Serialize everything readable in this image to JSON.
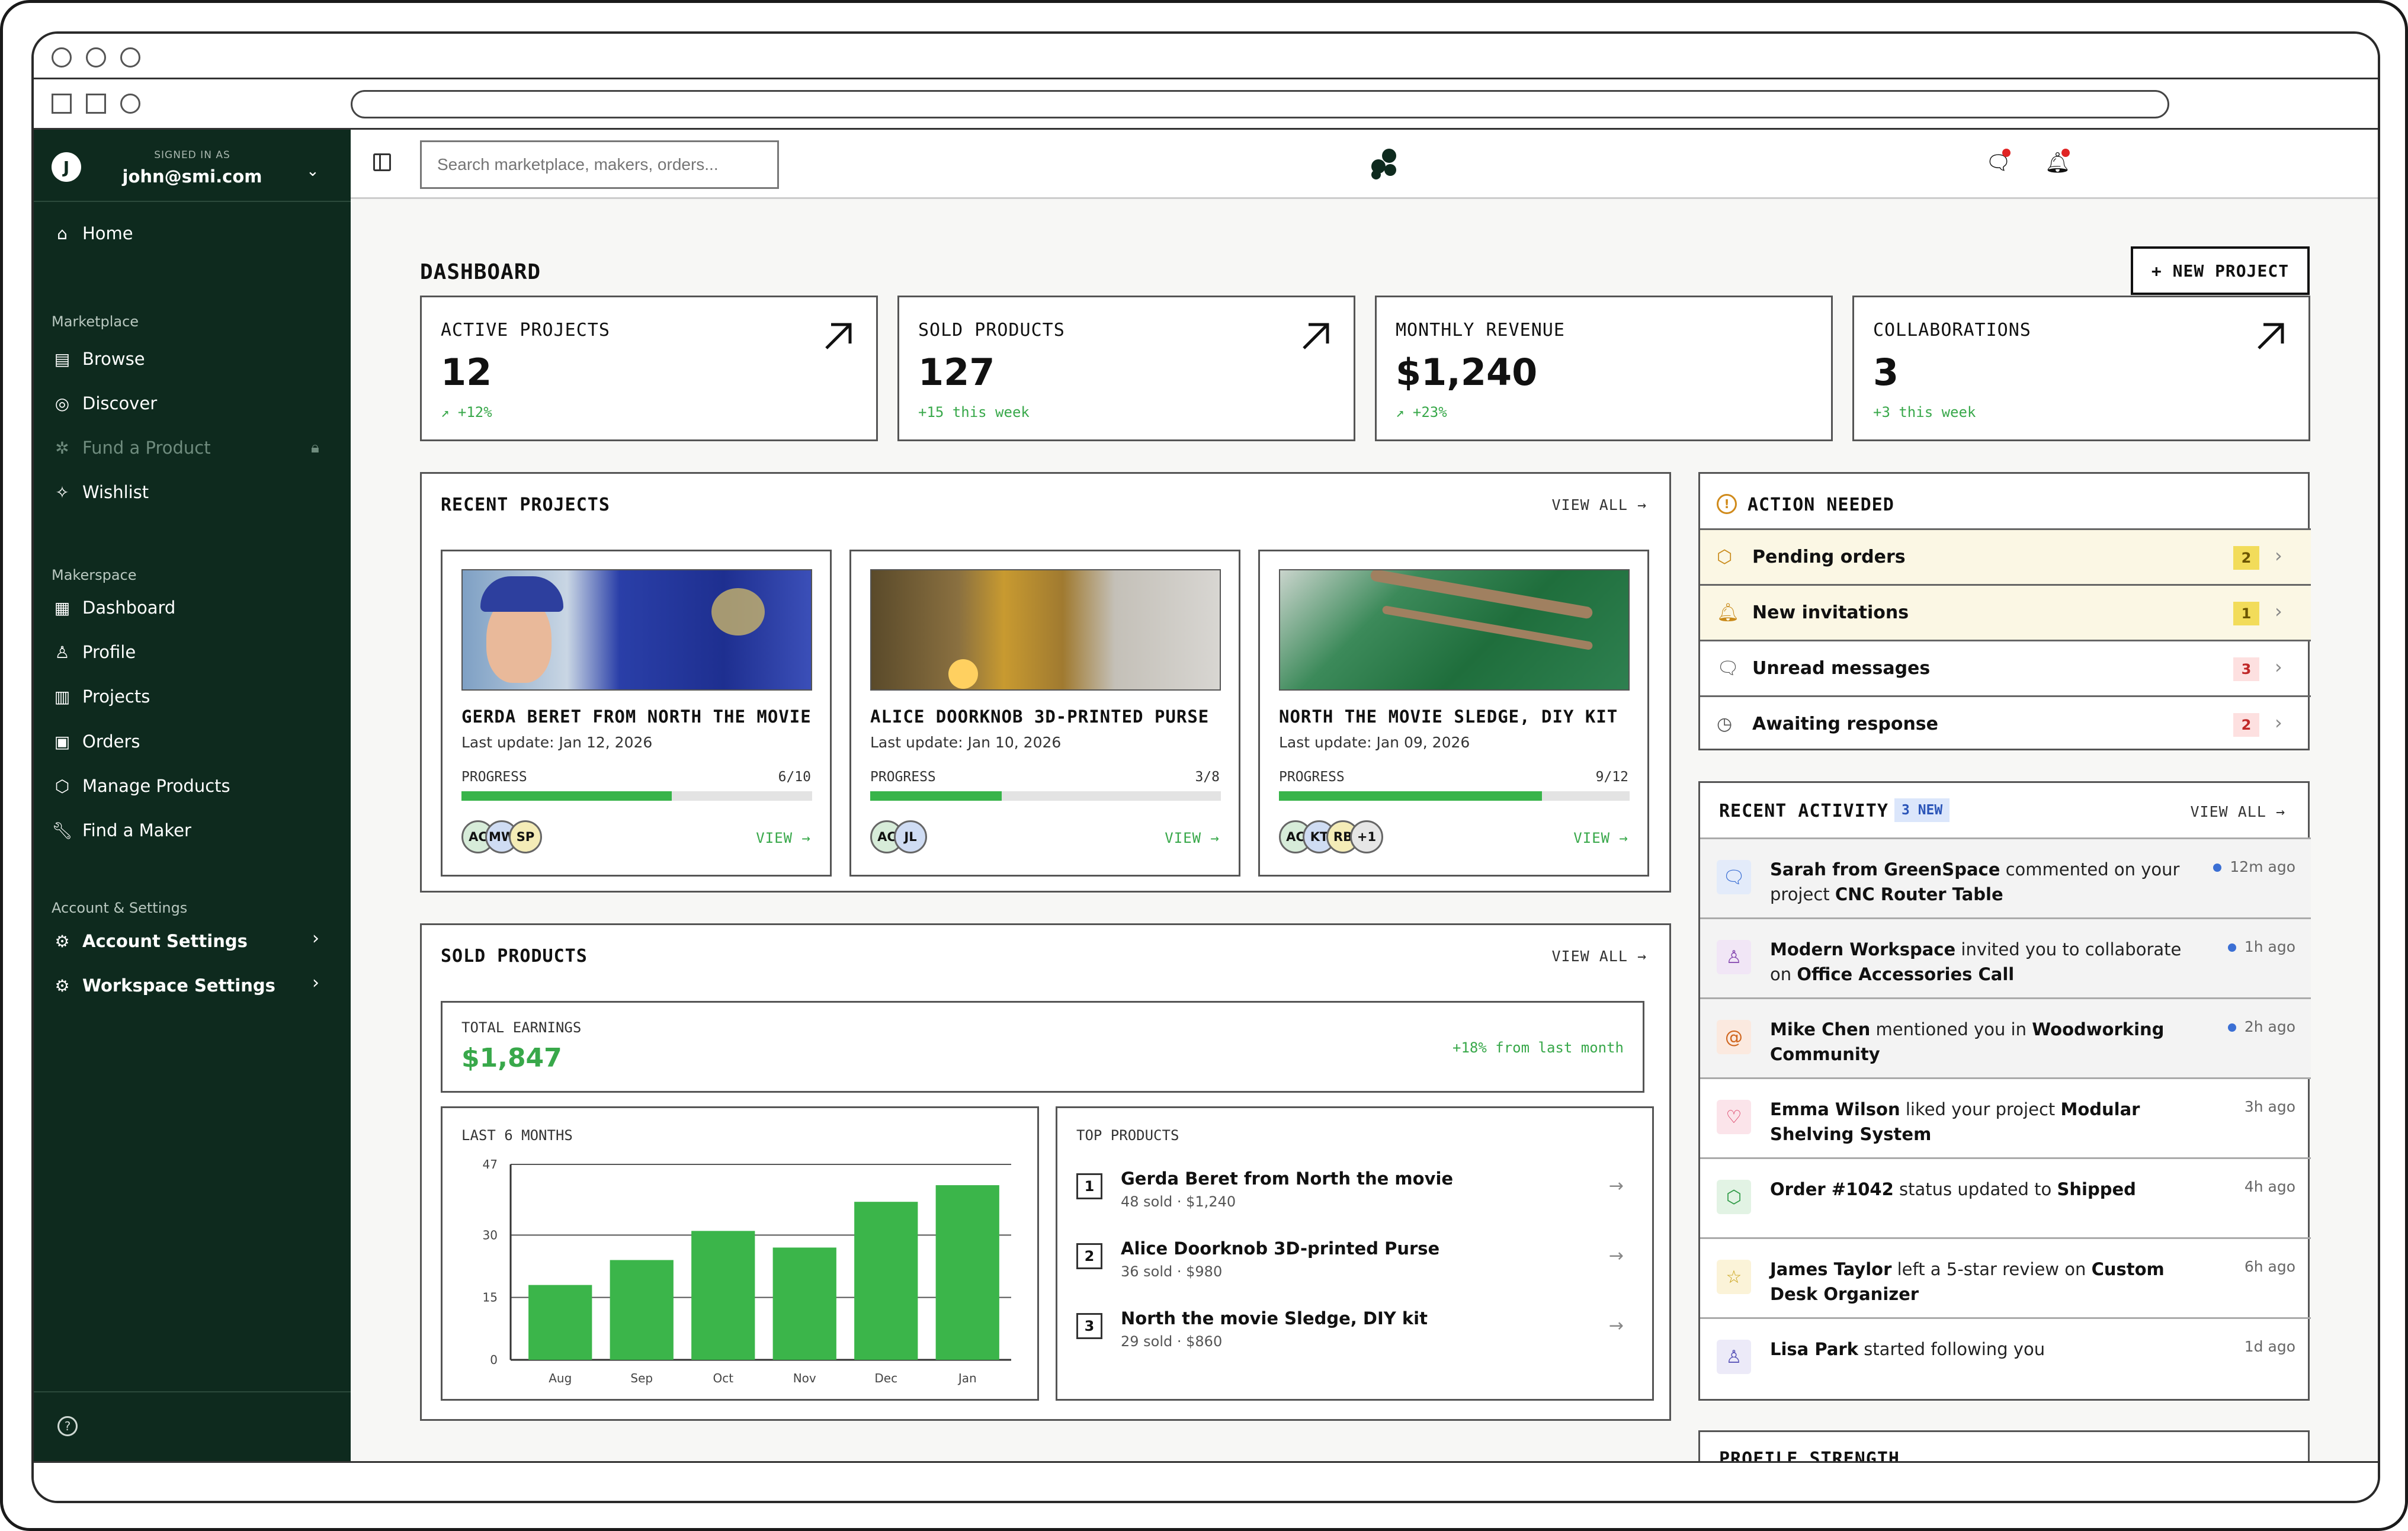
{
  "user": {
    "initial": "J",
    "signed_label": "SIGNED IN AS",
    "email": "john@smi.com"
  },
  "sidebar": {
    "home": "Home",
    "section_marketplace": "Marketplace",
    "browse": "Browse",
    "discover": "Discover",
    "fund": "Fund a Product",
    "wishlist": "Wishlist",
    "section_makerspace": "Makerspace",
    "dashboard": "Dashboard",
    "profile": "Profile",
    "projects": "Projects",
    "orders": "Orders",
    "manage": "Manage Products",
    "find": "Find a Maker",
    "section_account": "Account & Settings",
    "account_settings": "Account Settings",
    "workspace_settings": "Workspace Settings"
  },
  "search": {
    "placeholder": "Search marketplace, makers, orders..."
  },
  "page": {
    "title": "DASHBOARD",
    "new_project": "+ NEW PROJECT"
  },
  "stats": [
    {
      "label": "ACTIVE PROJECTS",
      "value": "12",
      "change": "+12%"
    },
    {
      "label": "SOLD PRODUCTS",
      "value": "127",
      "change": "+15 this week"
    },
    {
      "label": "MONTHLY REVENUE",
      "value": "$1,240",
      "change": "+23%"
    },
    {
      "label": "COLLABORATIONS",
      "value": "3",
      "change": "+3 this week"
    }
  ],
  "recent_projects": {
    "title": "RECENT PROJECTS",
    "view_all": "VIEW ALL →",
    "items": [
      {
        "title": "GERDA BERET FROM NORTH THE MOVIE",
        "updated": "Last update: Jan 12, 2026",
        "progress_label": "PROGRESS",
        "progress": "6/10",
        "progress_frac": 0.6,
        "avatars": [
          "AC",
          "MW",
          "SP"
        ],
        "view": "VIEW →"
      },
      {
        "title": "ALICE DOORKNOB 3D-PRINTED PURSE",
        "updated": "Last update: Jan 10, 2026",
        "progress_label": "PROGRESS",
        "progress": "3/8",
        "progress_frac": 0.375,
        "avatars": [
          "AC",
          "JL"
        ],
        "view": "VIEW →"
      },
      {
        "title": "NORTH THE MOVIE SLEDGE, DIY KIT",
        "updated": "Last update: Jan 09, 2026",
        "progress_label": "PROGRESS",
        "progress": "9/12",
        "progress_frac": 0.75,
        "avatars": [
          "AC",
          "KT",
          "RB",
          "+1"
        ],
        "view": "VIEW →"
      }
    ]
  },
  "sold_products": {
    "title": "SOLD PRODUCTS",
    "view_all": "VIEW ALL →",
    "earnings_label": "TOTAL EARNINGS",
    "earnings_value": "$1,847",
    "earnings_change": "+18% from last month",
    "chart_label": "LAST 6 MONTHS",
    "top_label": "TOP PRODUCTS",
    "top": [
      {
        "rank": "1",
        "name": "Gerda Beret from North the movie",
        "sub": "48 sold · $1,240"
      },
      {
        "rank": "2",
        "name": "Alice Doorknob 3D-printed Purse",
        "sub": "36 sold · $980"
      },
      {
        "rank": "3",
        "name": "North the movie Sledge, DIY kit",
        "sub": "29 sold · $860"
      }
    ]
  },
  "chart_data": {
    "type": "bar",
    "categories": [
      "Aug",
      "Sep",
      "Oct",
      "Nov",
      "Dec",
      "Jan"
    ],
    "values": [
      18,
      24,
      31,
      27,
      38,
      42
    ],
    "yticks": [
      "47",
      "30",
      "15",
      "0"
    ],
    "ylim": [
      0,
      47
    ],
    "color": "#3bb54a",
    "grid": true
  },
  "action_needed": {
    "title": "ACTION NEEDED",
    "items": [
      {
        "label": "Pending orders",
        "count": "2",
        "icon": "box-icon"
      },
      {
        "label": "New invitations",
        "count": "1",
        "icon": "bell-icon"
      },
      {
        "label": "Unread messages",
        "count": "3",
        "icon": "message-icon"
      },
      {
        "label": "Awaiting response",
        "count": "2",
        "icon": "clock-icon"
      }
    ]
  },
  "recent_activity": {
    "title": "RECENT ACTIVITY",
    "badge": "3 NEW",
    "view_all": "VIEW ALL →",
    "items": [
      {
        "a": "Sarah from GreenSpace",
        "b": " commented on your project ",
        "c": "CNC Router Table",
        "time": "12m ago"
      },
      {
        "a": "Modern Workspace",
        "b": " invited you to collaborate on ",
        "c": "Office Accessories Call",
        "time": "1h ago"
      },
      {
        "a": "Mike Chen",
        "b": " mentioned you in ",
        "c": "Woodworking Community",
        "time": "2h ago"
      },
      {
        "a": "Emma Wilson",
        "b": " liked your project ",
        "c": "Modular Shelving System",
        "time": "3h ago"
      },
      {
        "a": "Order #1042",
        "b": " status updated to ",
        "c": "Shipped",
        "time": "4h ago"
      },
      {
        "a": "James Taylor",
        "b": " left a 5-star review on ",
        "c": "Custom Desk Organizer",
        "time": "6h ago"
      },
      {
        "a": "Lisa Park",
        "b": " started following you",
        "c": "",
        "time": "1d ago"
      }
    ]
  },
  "profile_strength": {
    "title": "PROFILE STRENGTH"
  }
}
